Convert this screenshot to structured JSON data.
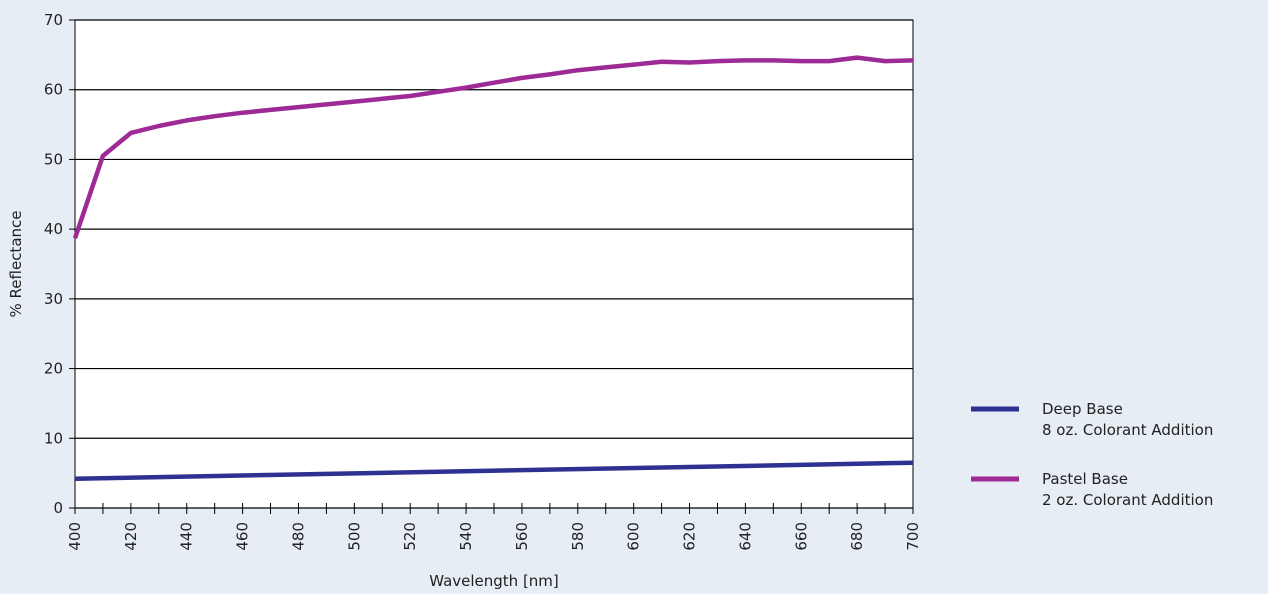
{
  "chart_data": {
    "type": "line",
    "title": "",
    "xlabel": "Wavelength [nm]",
    "ylabel": "% Reflectance",
    "xlim": [
      400,
      700
    ],
    "ylim": [
      0,
      70
    ],
    "xticks": [
      400,
      420,
      440,
      460,
      480,
      500,
      520,
      540,
      560,
      580,
      600,
      620,
      640,
      660,
      680,
      700
    ],
    "yticks": [
      0,
      10,
      20,
      30,
      40,
      50,
      60,
      70
    ],
    "grid": "horizontal",
    "legend_position": "right",
    "series": [
      {
        "name": "Deep Base",
        "name_line2": "8 oz. Colorant Addition",
        "color": "#2e3192",
        "x": [
          400,
          700
        ],
        "y": [
          4.2,
          6.5
        ]
      },
      {
        "name": "Pastel Base",
        "name_line2": "2 oz. Colorant Addition",
        "color": "#9e2a96",
        "x": [
          400,
          410,
          420,
          430,
          440,
          450,
          460,
          470,
          480,
          490,
          500,
          510,
          520,
          530,
          540,
          550,
          560,
          570,
          580,
          590,
          600,
          610,
          620,
          630,
          640,
          650,
          660,
          670,
          680,
          690,
          700
        ],
        "y": [
          38.7,
          50.5,
          53.8,
          54.8,
          55.6,
          56.2,
          56.7,
          57.1,
          57.5,
          57.9,
          58.3,
          58.7,
          59.1,
          59.7,
          60.3,
          61.0,
          61.7,
          62.2,
          62.8,
          63.2,
          63.6,
          64.0,
          63.9,
          64.1,
          64.2,
          64.2,
          64.1,
          64.1,
          64.6,
          64.1,
          64.2
        ]
      }
    ]
  }
}
